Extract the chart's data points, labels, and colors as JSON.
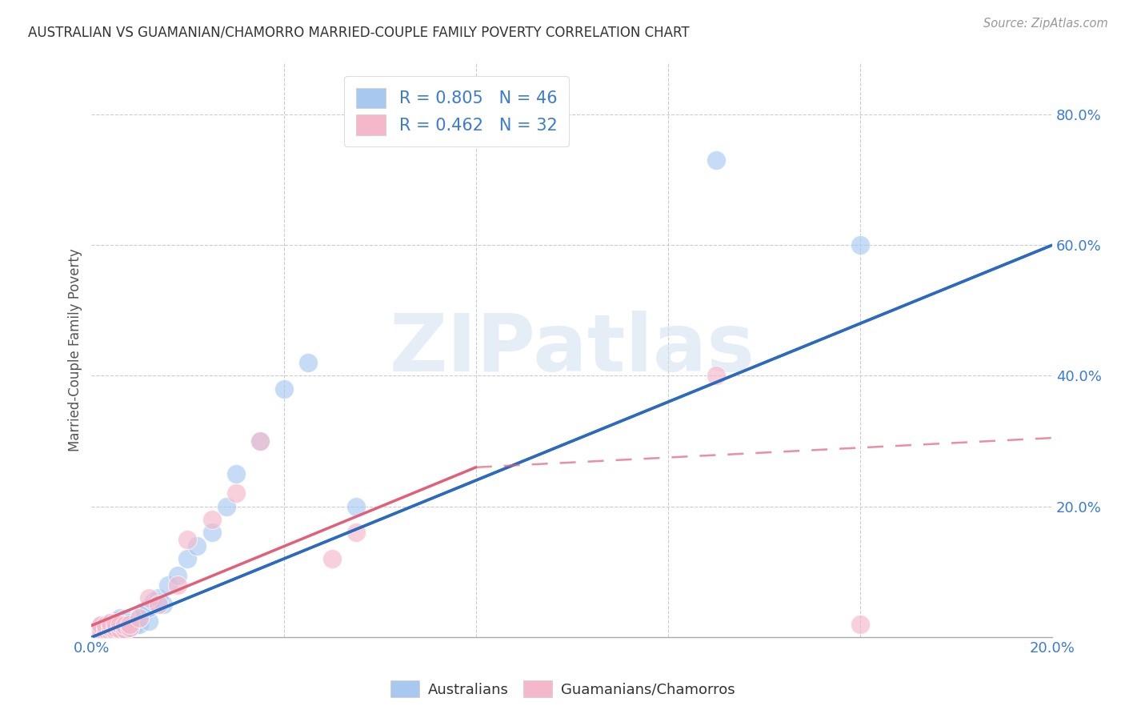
{
  "title": "AUSTRALIAN VS GUAMANIAN/CHAMORRO MARRIED-COUPLE FAMILY POVERTY CORRELATION CHART",
  "source": "Source: ZipAtlas.com",
  "ylabel": "Married-Couple Family Poverty",
  "xlim": [
    0.0,
    0.2
  ],
  "ylim": [
    0.0,
    0.88
  ],
  "xtick_positions": [
    0.0,
    0.04,
    0.08,
    0.12,
    0.16,
    0.2
  ],
  "xtick_labels": [
    "0.0%",
    "",
    "",
    "",
    "",
    "20.0%"
  ],
  "ytick_positions": [
    0.0,
    0.2,
    0.4,
    0.6,
    0.8
  ],
  "ytick_labels": [
    "",
    "20.0%",
    "40.0%",
    "60.0%",
    "80.0%"
  ],
  "australian_R": 0.805,
  "australian_N": 46,
  "guamanian_R": 0.462,
  "guamanian_N": 32,
  "australian_color": "#a8c8f0",
  "guamanian_color": "#f5b8ca",
  "australian_line_color": "#2b6abf",
  "guamanian_line_color": "#e0607a",
  "watermark": "ZIPatlas",
  "legend_label_1": "Australians",
  "legend_label_2": "Guamanians/Chamorros",
  "aus_line_x0": 0.0,
  "aus_line_y0": 0.0,
  "aus_line_x1": 0.2,
  "aus_line_y1": 0.6,
  "gua_line_solid_x0": 0.0,
  "gua_line_solid_y0": 0.018,
  "gua_line_solid_x1": 0.08,
  "gua_line_solid_y1": 0.26,
  "gua_line_dash_x0": 0.08,
  "gua_line_dash_y0": 0.26,
  "gua_line_dash_x1": 0.2,
  "gua_line_dash_y1": 0.305,
  "australian_x": [
    0.001,
    0.001,
    0.002,
    0.002,
    0.002,
    0.003,
    0.003,
    0.003,
    0.003,
    0.004,
    0.004,
    0.004,
    0.005,
    0.005,
    0.005,
    0.006,
    0.006,
    0.006,
    0.006,
    0.007,
    0.007,
    0.007,
    0.008,
    0.008,
    0.009,
    0.01,
    0.01,
    0.011,
    0.012,
    0.012,
    0.013,
    0.014,
    0.015,
    0.016,
    0.018,
    0.02,
    0.022,
    0.025,
    0.028,
    0.03,
    0.035,
    0.04,
    0.045,
    0.055,
    0.13,
    0.16
  ],
  "australian_y": [
    0.005,
    0.01,
    0.008,
    0.012,
    0.018,
    0.008,
    0.01,
    0.015,
    0.02,
    0.01,
    0.015,
    0.022,
    0.012,
    0.018,
    0.025,
    0.01,
    0.015,
    0.02,
    0.03,
    0.012,
    0.018,
    0.028,
    0.015,
    0.022,
    0.018,
    0.02,
    0.03,
    0.04,
    0.025,
    0.045,
    0.055,
    0.06,
    0.05,
    0.08,
    0.095,
    0.12,
    0.14,
    0.16,
    0.2,
    0.25,
    0.3,
    0.38,
    0.42,
    0.2,
    0.73,
    0.6
  ],
  "guamanian_x": [
    0.001,
    0.001,
    0.002,
    0.002,
    0.002,
    0.003,
    0.003,
    0.003,
    0.004,
    0.004,
    0.004,
    0.005,
    0.005,
    0.005,
    0.006,
    0.006,
    0.007,
    0.007,
    0.008,
    0.008,
    0.01,
    0.012,
    0.014,
    0.018,
    0.02,
    0.025,
    0.03,
    0.035,
    0.05,
    0.055,
    0.13,
    0.16
  ],
  "guamanian_y": [
    0.005,
    0.01,
    0.008,
    0.012,
    0.018,
    0.008,
    0.012,
    0.018,
    0.01,
    0.015,
    0.022,
    0.01,
    0.015,
    0.022,
    0.012,
    0.02,
    0.012,
    0.018,
    0.015,
    0.02,
    0.03,
    0.06,
    0.05,
    0.08,
    0.15,
    0.18,
    0.22,
    0.3,
    0.12,
    0.16,
    0.4,
    0.02
  ]
}
